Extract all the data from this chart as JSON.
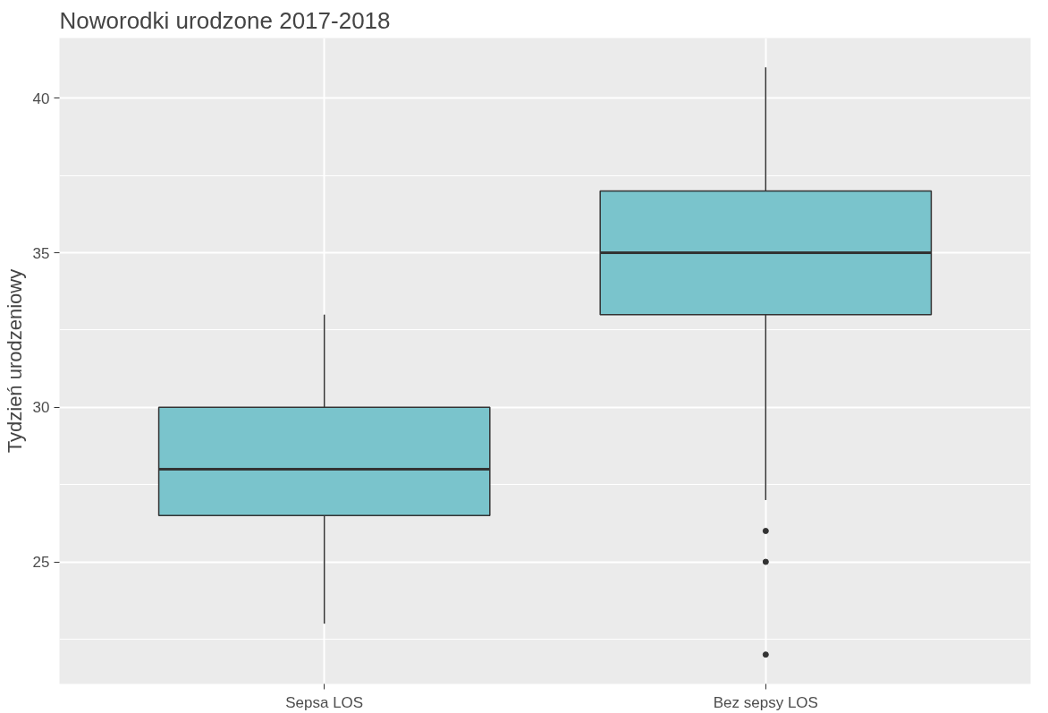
{
  "chart_data": {
    "type": "box",
    "title": "Noworodki urodzone 2017-2018",
    "ylabel": "Tydzień urodzeniowy",
    "categories": [
      "Sepsa LOS",
      "Bez sepsy LOS"
    ],
    "series": [
      {
        "color": "#7ac4cc",
        "boxes": [
          {
            "low": 23,
            "q1": 26.5,
            "median": 28,
            "q3": 30,
            "high": 33
          },
          {
            "low": 27,
            "q1": 33,
            "median": 35,
            "q3": 37,
            "high": 41,
            "outliers": [
              26,
              25,
              22
            ]
          }
        ]
      }
    ],
    "ylim": [
      21.05,
      41.95
    ],
    "yticks": [
      {
        "value": 22.5,
        "label": null
      },
      25,
      {
        "value": 27.5,
        "label": null
      },
      30,
      {
        "value": 32.5,
        "label": null
      },
      35,
      {
        "value": 37.5,
        "label": null
      },
      40
    ],
    "grid": true
  }
}
